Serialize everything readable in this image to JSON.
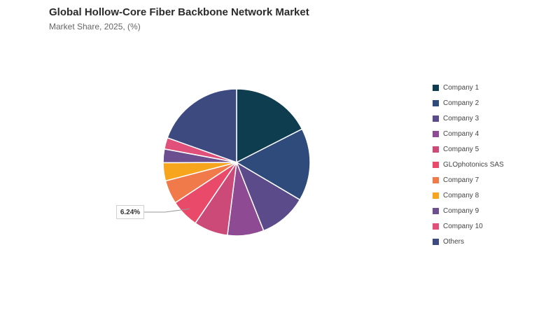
{
  "header": {
    "title": "Global Hollow-Core Fiber Backbone Network Market",
    "subtitle": "Market Share, 2025, (%)"
  },
  "chart_data": {
    "type": "pie",
    "title": "Global Hollow-Core Fiber Backbone Network Market",
    "subtitle": "Market Share, 2025, (%)",
    "legend_position": "right",
    "labels": [
      "Company 1",
      "Company 2",
      "Company 3",
      "Company 4",
      "Company 5",
      "GLOphotonics SAS",
      "Company 7",
      "Company 8",
      "Company 9",
      "Company 10",
      "Others"
    ],
    "values": [
      17.5,
      16.0,
      10.5,
      8.0,
      7.5,
      6.24,
      5.2,
      4.0,
      3.0,
      2.5,
      19.56
    ],
    "colors": [
      "#0e3d4f",
      "#2e4b7c",
      "#5b4b8a",
      "#8e4a93",
      "#cc4a78",
      "#ea4a6a",
      "#f07a4a",
      "#f7a51c",
      "#6b4f8f",
      "#e0507a",
      "#3d4a80"
    ],
    "annotations": [
      {
        "label": "6.24%",
        "slice": "GLOphotonics SAS"
      }
    ]
  }
}
